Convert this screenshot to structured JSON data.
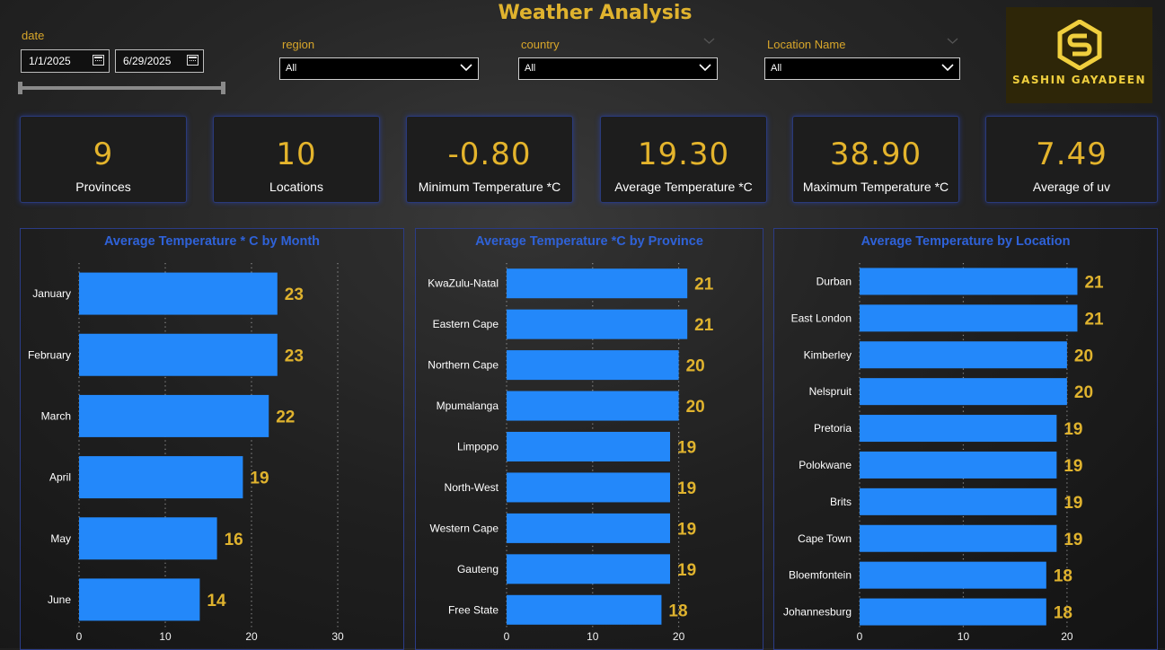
{
  "header": {
    "title": "Weather Analysis"
  },
  "filters": {
    "date_label": "date",
    "date_start": "1/1/2025",
    "date_end": "6/29/2025",
    "region_label": "region",
    "region_value": "All",
    "country_label": "country",
    "country_value": "All",
    "location_label": "Location Name",
    "location_value": "All"
  },
  "logo": {
    "text": "SASHIN GAYADEEN",
    "accent": "#f0cf3e"
  },
  "kpis": [
    {
      "value": "9",
      "label": "Provinces"
    },
    {
      "value": "10",
      "label": "Locations"
    },
    {
      "value": "-0.80",
      "label": "Minimum Temperature *C"
    },
    {
      "value": "19.30",
      "label": "Average Temperature *C"
    },
    {
      "value": "38.90",
      "label": "Maximum Temperature *C"
    },
    {
      "value": "7.49",
      "label": "Average of uv"
    }
  ],
  "colors": {
    "bar": "#2388fa",
    "value_label": "#e0b32e",
    "kpi_value": "#e4b42c",
    "panel_title": "#2f62d8"
  },
  "chart_data": [
    {
      "type": "bar",
      "orientation": "horizontal",
      "title": "Average Temperature * C by Month",
      "categories": [
        "January",
        "February",
        "March",
        "April",
        "May",
        "June"
      ],
      "values": [
        23,
        23,
        22,
        19,
        16,
        14
      ],
      "xlim": [
        0,
        30
      ],
      "xticks": [
        0,
        10,
        20,
        30
      ],
      "grid": true
    },
    {
      "type": "bar",
      "orientation": "horizontal",
      "title": "Average Temperature *C by Province",
      "categories": [
        "KwaZulu-Natal",
        "Eastern Cape",
        "Northern Cape",
        "Mpumalanga",
        "Limpopo",
        "North-West",
        "Western Cape",
        "Gauteng",
        "Free State"
      ],
      "values": [
        21,
        21,
        20,
        20,
        19,
        19,
        19,
        19,
        18
      ],
      "xlim": [
        0,
        21.4
      ],
      "xticks": [
        0,
        10,
        20
      ],
      "grid": true
    },
    {
      "type": "bar",
      "orientation": "horizontal",
      "title": "Average Temperature by Location",
      "categories": [
        "Durban",
        "East London",
        "Kimberley",
        "Nelspruit",
        "Pretoria",
        "Polokwane",
        "Brits",
        "Cape Town",
        "Bloemfontein",
        "Johannesburg"
      ],
      "values": [
        21,
        21,
        20,
        20,
        19,
        19,
        19,
        19,
        18,
        18
      ],
      "xlim": [
        0,
        22
      ],
      "xticks": [
        0,
        10,
        20
      ],
      "grid": true
    }
  ]
}
